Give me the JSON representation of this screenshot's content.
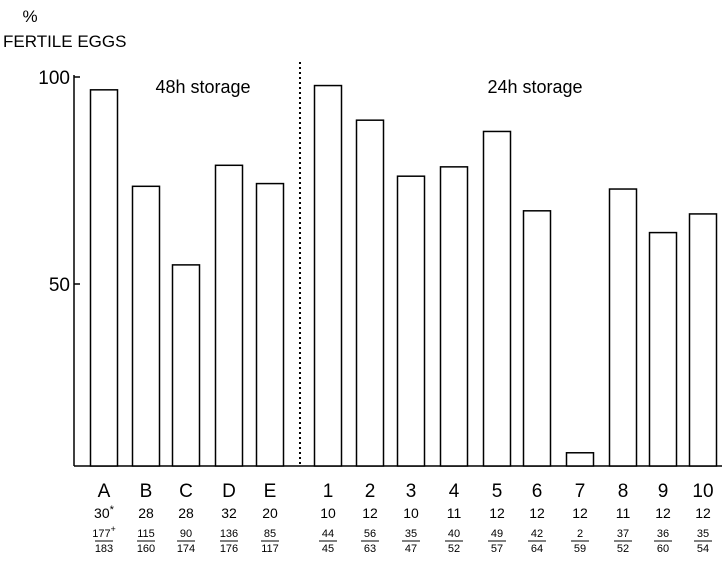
{
  "chart_data": {
    "type": "bar",
    "ylabel_line1": "%",
    "ylabel_line2": "FERTILE EGGS",
    "yticks": [
      "100",
      "50"
    ],
    "ylim": [
      0,
      100
    ],
    "groups": [
      {
        "label": "48h storage",
        "categories": [
          "A",
          "B",
          "C",
          "D",
          "E"
        ]
      },
      {
        "label": "24h storage",
        "categories": [
          "1",
          "2",
          "3",
          "4",
          "5",
          "6",
          "7",
          "8",
          "9",
          "10"
        ]
      }
    ],
    "categories": [
      "A",
      "B",
      "C",
      "D",
      "E",
      "1",
      "2",
      "3",
      "4",
      "5",
      "6",
      "7",
      "8",
      "9",
      "10"
    ],
    "values": [
      96.7,
      71.9,
      51.7,
      77.3,
      72.6,
      97.8,
      88.9,
      74.5,
      76.9,
      86.0,
      65.6,
      3.4,
      71.2,
      60.0,
      64.8
    ],
    "n_labels": [
      "30*",
      "28",
      "28",
      "32",
      "20",
      "10",
      "12",
      "10",
      "11",
      "12",
      "12",
      "12",
      "11",
      "12",
      "12"
    ],
    "fertile": [
      "177+",
      "115",
      "90",
      "136",
      "85",
      "44",
      "56",
      "35",
      "40",
      "49",
      "42",
      "2",
      "37",
      "36",
      "35"
    ],
    "total": [
      "183",
      "160",
      "174",
      "176",
      "117",
      "45",
      "63",
      "47",
      "52",
      "57",
      "64",
      "59",
      "52",
      "60",
      "54"
    ],
    "grid": false,
    "legend": "none",
    "colors": {
      "bar_fill": "#ffffff",
      "bar_stroke": "#000000"
    }
  }
}
